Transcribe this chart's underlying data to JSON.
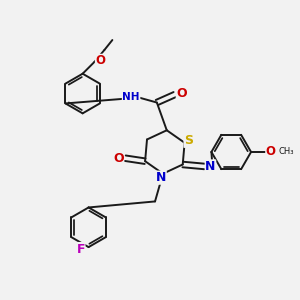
{
  "bg_color": "#f2f2f2",
  "bond_color": "#1a1a1a",
  "atom_colors": {
    "N": "#0000cc",
    "O": "#cc0000",
    "S": "#ccaa00",
    "F": "#bb00bb",
    "H": "#008080",
    "C": "#1a1a1a"
  },
  "font_size": 8.0,
  "fig_size": [
    3.0,
    3.0
  ],
  "dpi": 100
}
